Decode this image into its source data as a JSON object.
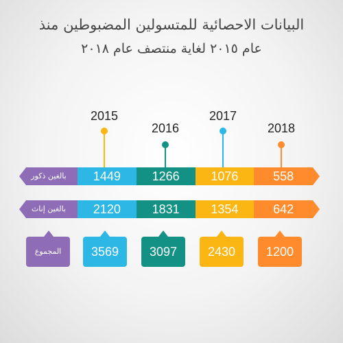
{
  "title": {
    "line1": "البيانات الاحصائية للمتسولين المضبوطين منذ",
    "line2": "عام ٢٠١٥ لغاية منتصف عام ٢٠١٨"
  },
  "chart_data": {
    "type": "table",
    "categories": [
      "2015",
      "2016",
      "2017",
      "2018"
    ],
    "series": [
      {
        "name": "بالغين ذكور",
        "values": [
          1449,
          1266,
          1076,
          558
        ]
      },
      {
        "name": "بالغين إناث",
        "values": [
          2120,
          1831,
          1354,
          642
        ]
      }
    ],
    "totals_label": "المجموع",
    "totals": [
      3569,
      3097,
      2430,
      1200
    ],
    "colors": [
      "#2cb7e5",
      "#139184",
      "#fbb614",
      "#ff8b2d"
    ]
  }
}
